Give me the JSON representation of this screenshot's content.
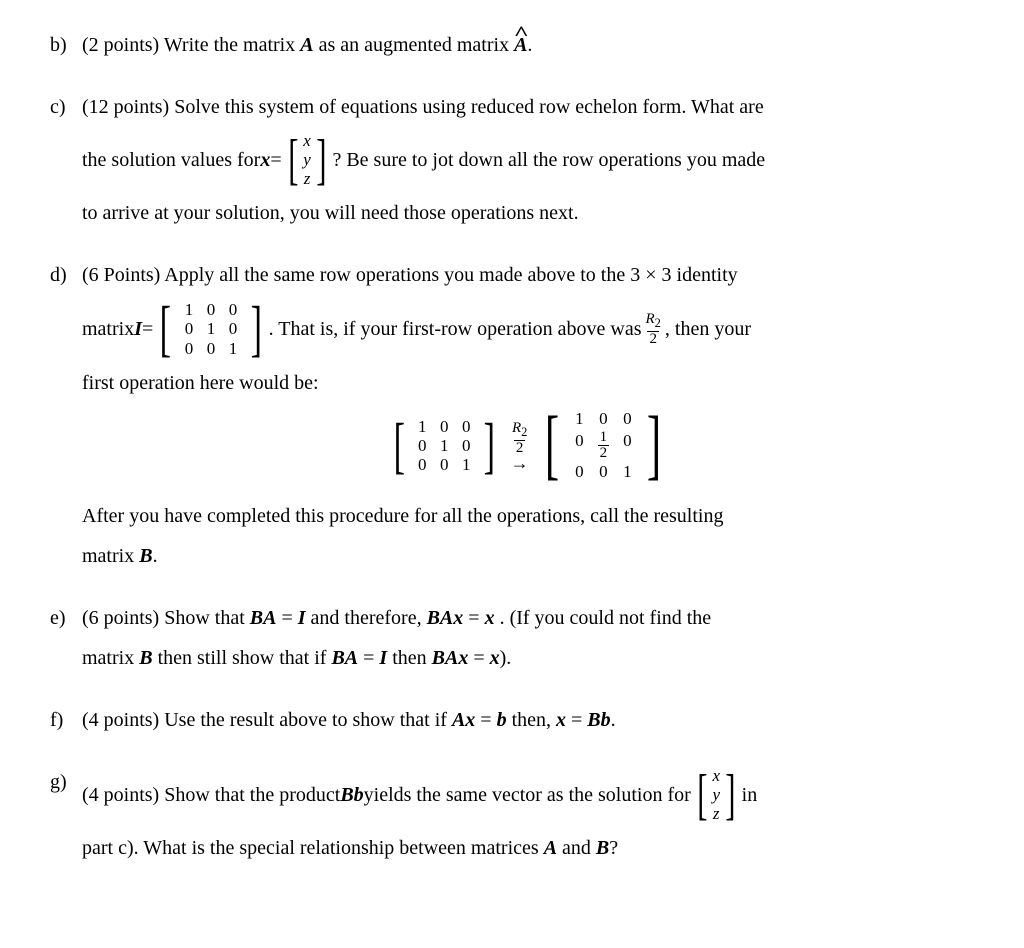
{
  "questions": {
    "b": {
      "label": "b)",
      "points": "(2 points)",
      "text1": "Write the matrix ",
      "A": "A",
      "text2": " as an augmented matrix ",
      "Ahat": "A",
      "text3": "."
    },
    "c": {
      "label": "c)",
      "points": "(12 points)",
      "line1a": "Solve this system of equations using reduced row echelon form. What are",
      "line2a": "the solution values for ",
      "bx": "x",
      "eq": " = ",
      "vec": [
        "x",
        "y",
        "z"
      ],
      "line2b": "? Be sure to jot down all the row operations you made",
      "line3": "to arrive at your solution, you will need those operations next."
    },
    "d": {
      "label": "d)",
      "points": "(6 Points)",
      "line1": "Apply all the same row operations you made above to the 3 × 3 identity",
      "line2a": "matrix ",
      "Ibold": "I",
      "eq1": " = ",
      "identity": [
        [
          "1",
          "0",
          "0"
        ],
        [
          "0",
          "1",
          "0"
        ],
        [
          "0",
          "0",
          "1"
        ]
      ],
      "line2b": ". That is, if your first-row operation above was ",
      "fracR2": {
        "num": "R",
        "sub": "2",
        "den": "2"
      },
      "line2c": ", then your",
      "line3": "first operation here would be:",
      "result": [
        [
          "1",
          "0",
          "0"
        ],
        [
          "0",
          "½",
          "0"
        ],
        [
          "0",
          "0",
          "1"
        ]
      ],
      "after1": "After you have completed this procedure for all the operations, call the resulting",
      "after2a": "matrix ",
      "Bbold": "B",
      "after2b": "."
    },
    "e": {
      "label": "e)",
      "points": "(6 points)",
      "t1": "Show that ",
      "BA": "BA",
      "eqI": " = ",
      "I": "I",
      "t2": " and therefore, ",
      "BAx": "BAx",
      "eqx": " = ",
      "x": "x",
      "t3": ". (If you could not find the",
      "line2a": "matrix ",
      "B": "B",
      "line2b": " then still show that if ",
      "line2c": " then ",
      "line2d": ")."
    },
    "f": {
      "label": "f)",
      "points": "(4 points)",
      "t1": "Use the result above to show that if ",
      "Ax": "Ax",
      "eq": " = ",
      "b": "b",
      "t2": " then, ",
      "x": "x",
      "Bb": "Bb",
      "t3": "."
    },
    "g": {
      "label": "g)",
      "points": "(4 points)",
      "t1": "Show that the product ",
      "Bb": "Bb",
      "t2": " yields the same vector as the solution for ",
      "vec": [
        "x",
        "y",
        "z"
      ],
      "t3": " in",
      "line2": "part c). What is the special relationship between matrices ",
      "A": "A",
      "and": " and ",
      "B": "B",
      "q": "?"
    }
  }
}
